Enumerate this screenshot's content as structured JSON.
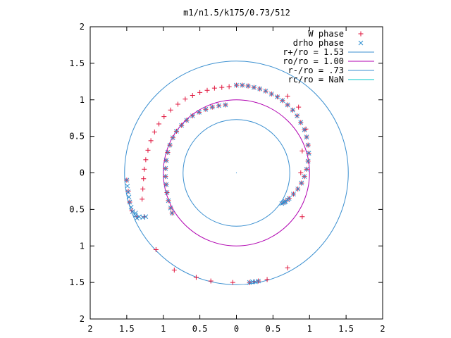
{
  "chart_data": {
    "type": "scatter",
    "title": "m1/n1.5/k175/0.73/512",
    "xlim": [
      -2,
      2
    ],
    "ylim": [
      -2,
      2
    ],
    "xticks": [
      {
        "value": -2,
        "label": "2"
      },
      {
        "value": -1.5,
        "label": "1.5"
      },
      {
        "value": -1,
        "label": "1"
      },
      {
        "value": -0.5,
        "label": "0.5"
      },
      {
        "value": 0,
        "label": "0"
      },
      {
        "value": 0.5,
        "label": "0.5"
      },
      {
        "value": 1,
        "label": "1"
      },
      {
        "value": 1.5,
        "label": "1.5"
      },
      {
        "value": 2,
        "label": "2"
      }
    ],
    "yticks": [
      {
        "value": 2,
        "label": "2"
      },
      {
        "value": 1.5,
        "label": "1.5"
      },
      {
        "value": 1,
        "label": "1"
      },
      {
        "value": 0.5,
        "label": "0.5"
      },
      {
        "value": 0,
        "label": "0"
      },
      {
        "value": -0.5,
        "label": "0.5"
      },
      {
        "value": -1,
        "label": "1"
      },
      {
        "value": -1.5,
        "label": "1.5"
      },
      {
        "value": -2,
        "label": "2"
      }
    ],
    "grid": false,
    "legend_position": "top-right",
    "legend": [
      {
        "label": "W phase",
        "kind": "plus",
        "color": "#e0143c"
      },
      {
        "label": "drho phase",
        "kind": "cross",
        "color": "#2f8fd0"
      },
      {
        "label": "r+/ro = 1.53",
        "kind": "line",
        "color": "#3a8fd0"
      },
      {
        "label": "ro/ro = 1.00",
        "kind": "line",
        "color": "#b000b0"
      },
      {
        "label": "r-/ro = .73",
        "kind": "line",
        "color": "#3a8fd0"
      },
      {
        "label": "rc/ro = NaN",
        "kind": "line",
        "color": "#00c8c8"
      }
    ],
    "circles": [
      {
        "label": "r+/ro = 1.53",
        "radius": 1.53,
        "color": "#3a8fd0"
      },
      {
        "label": "ro/ro = 1.00",
        "radius": 1.0,
        "color": "#b000b0"
      },
      {
        "label": "r-/ro = .73",
        "radius": 0.73,
        "color": "#3a8fd0"
      }
    ],
    "series": [
      {
        "name": "W phase",
        "marker": "plus",
        "color": "#e0143c",
        "points": [
          [
            0.0,
            1.2
          ],
          [
            0.08,
            1.2
          ],
          [
            0.16,
            1.19
          ],
          [
            0.24,
            1.17
          ],
          [
            0.32,
            1.15
          ],
          [
            0.4,
            1.12
          ],
          [
            0.48,
            1.08
          ],
          [
            0.56,
            1.04
          ],
          [
            0.63,
            0.99
          ],
          [
            0.7,
            0.93
          ],
          [
            0.77,
            0.86
          ],
          [
            0.83,
            0.78
          ],
          [
            0.88,
            0.69
          ],
          [
            0.93,
            0.59
          ],
          [
            0.96,
            0.49
          ],
          [
            0.98,
            0.38
          ],
          [
            0.99,
            0.27
          ],
          [
            0.98,
            0.16
          ],
          [
            0.96,
            0.05
          ],
          [
            0.93,
            -0.05
          ],
          [
            0.89,
            -0.14
          ],
          [
            0.84,
            -0.22
          ],
          [
            0.78,
            -0.29
          ],
          [
            0.72,
            -0.35
          ],
          [
            0.67,
            -0.39
          ],
          [
            0.64,
            -0.41
          ],
          [
            -0.15,
            0.93
          ],
          [
            -0.24,
            0.92
          ],
          [
            -0.33,
            0.9
          ],
          [
            -0.42,
            0.87
          ],
          [
            -0.51,
            0.83
          ],
          [
            -0.6,
            0.78
          ],
          [
            -0.68,
            0.72
          ],
          [
            -0.75,
            0.65
          ],
          [
            -0.82,
            0.57
          ],
          [
            -0.87,
            0.48
          ],
          [
            -0.91,
            0.38
          ],
          [
            -0.94,
            0.28
          ],
          [
            -0.96,
            0.17
          ],
          [
            -0.97,
            0.06
          ],
          [
            -0.97,
            -0.05
          ],
          [
            -0.96,
            -0.16
          ],
          [
            -0.95,
            -0.27
          ],
          [
            -0.93,
            -0.38
          ],
          [
            -0.9,
            -0.48
          ],
          [
            -0.88,
            -0.55
          ],
          [
            -0.1,
            1.18
          ],
          [
            -0.2,
            1.17
          ],
          [
            -0.3,
            1.16
          ],
          [
            -0.4,
            1.13
          ],
          [
            -0.5,
            1.1
          ],
          [
            -0.6,
            1.06
          ],
          [
            -0.7,
            1.01
          ],
          [
            -0.8,
            0.94
          ],
          [
            -0.9,
            0.86
          ],
          [
            -0.99,
            0.77
          ],
          [
            -1.06,
            0.67
          ],
          [
            -1.12,
            0.56
          ],
          [
            -1.17,
            0.44
          ],
          [
            -1.21,
            0.31
          ],
          [
            -1.24,
            0.18
          ],
          [
            -1.26,
            0.05
          ],
          [
            -1.27,
            -0.08
          ],
          [
            -1.28,
            -0.22
          ],
          [
            -1.29,
            -0.36
          ],
          [
            -1.5,
            -0.1
          ],
          [
            -1.48,
            -0.25
          ],
          [
            -1.46,
            -0.4
          ],
          [
            -1.43,
            -0.52
          ],
          [
            -1.36,
            -0.6
          ],
          [
            -1.26,
            -0.6
          ],
          [
            -1.1,
            -1.05
          ],
          [
            -0.85,
            -1.33
          ],
          [
            -0.55,
            -1.43
          ],
          [
            -0.35,
            -1.48
          ],
          [
            -0.05,
            -1.5
          ],
          [
            0.18,
            -1.5
          ],
          [
            0.24,
            -1.49
          ],
          [
            0.3,
            -1.48
          ],
          [
            0.42,
            -1.46
          ],
          [
            0.7,
            -1.3
          ],
          [
            0.9,
            -0.6
          ],
          [
            0.88,
            0.0
          ],
          [
            0.9,
            0.3
          ],
          [
            0.95,
            0.6
          ],
          [
            0.85,
            0.9
          ],
          [
            0.7,
            1.05
          ]
        ]
      },
      {
        "name": "drho phase",
        "marker": "cross",
        "color": "#2f8fd0",
        "points": [
          [
            0.0,
            1.2
          ],
          [
            0.08,
            1.2
          ],
          [
            0.16,
            1.19
          ],
          [
            0.24,
            1.17
          ],
          [
            0.32,
            1.15
          ],
          [
            0.4,
            1.12
          ],
          [
            0.48,
            1.08
          ],
          [
            0.56,
            1.04
          ],
          [
            0.63,
            0.99
          ],
          [
            0.7,
            0.93
          ],
          [
            0.77,
            0.86
          ],
          [
            0.83,
            0.78
          ],
          [
            0.88,
            0.69
          ],
          [
            0.93,
            0.59
          ],
          [
            0.96,
            0.49
          ],
          [
            0.98,
            0.38
          ],
          [
            0.99,
            0.27
          ],
          [
            0.98,
            0.16
          ],
          [
            0.96,
            0.05
          ],
          [
            0.93,
            -0.05
          ],
          [
            0.89,
            -0.14
          ],
          [
            0.84,
            -0.22
          ],
          [
            0.78,
            -0.29
          ],
          [
            0.72,
            -0.35
          ],
          [
            0.67,
            -0.39
          ],
          [
            0.64,
            -0.41
          ],
          [
            0.62,
            -0.42
          ],
          [
            0.66,
            -0.4
          ],
          [
            0.7,
            -0.37
          ],
          [
            -0.15,
            0.93
          ],
          [
            -0.24,
            0.92
          ],
          [
            -0.33,
            0.9
          ],
          [
            -0.42,
            0.87
          ],
          [
            -0.51,
            0.83
          ],
          [
            -0.6,
            0.78
          ],
          [
            -0.68,
            0.72
          ],
          [
            -0.75,
            0.65
          ],
          [
            -0.82,
            0.57
          ],
          [
            -0.87,
            0.48
          ],
          [
            -0.91,
            0.38
          ],
          [
            -0.94,
            0.28
          ],
          [
            -0.96,
            0.17
          ],
          [
            -0.97,
            0.06
          ],
          [
            -0.97,
            -0.05
          ],
          [
            -0.96,
            -0.16
          ],
          [
            -0.95,
            -0.27
          ],
          [
            -0.93,
            -0.38
          ],
          [
            -0.9,
            -0.48
          ],
          [
            -0.88,
            -0.55
          ],
          [
            -1.5,
            -0.1
          ],
          [
            -1.49,
            -0.18
          ],
          [
            -1.48,
            -0.26
          ],
          [
            -1.47,
            -0.33
          ],
          [
            -1.46,
            -0.4
          ],
          [
            -1.44,
            -0.47
          ],
          [
            -1.42,
            -0.53
          ],
          [
            -1.38,
            -0.58
          ],
          [
            -1.33,
            -0.6
          ],
          [
            -1.28,
            -0.61
          ],
          [
            -1.24,
            -0.6
          ],
          [
            -1.36,
            -0.62
          ],
          [
            -1.38,
            -0.55
          ],
          [
            0.18,
            -1.5
          ],
          [
            0.22,
            -1.49
          ],
          [
            0.26,
            -1.49
          ],
          [
            0.3,
            -1.48
          ]
        ]
      }
    ]
  }
}
